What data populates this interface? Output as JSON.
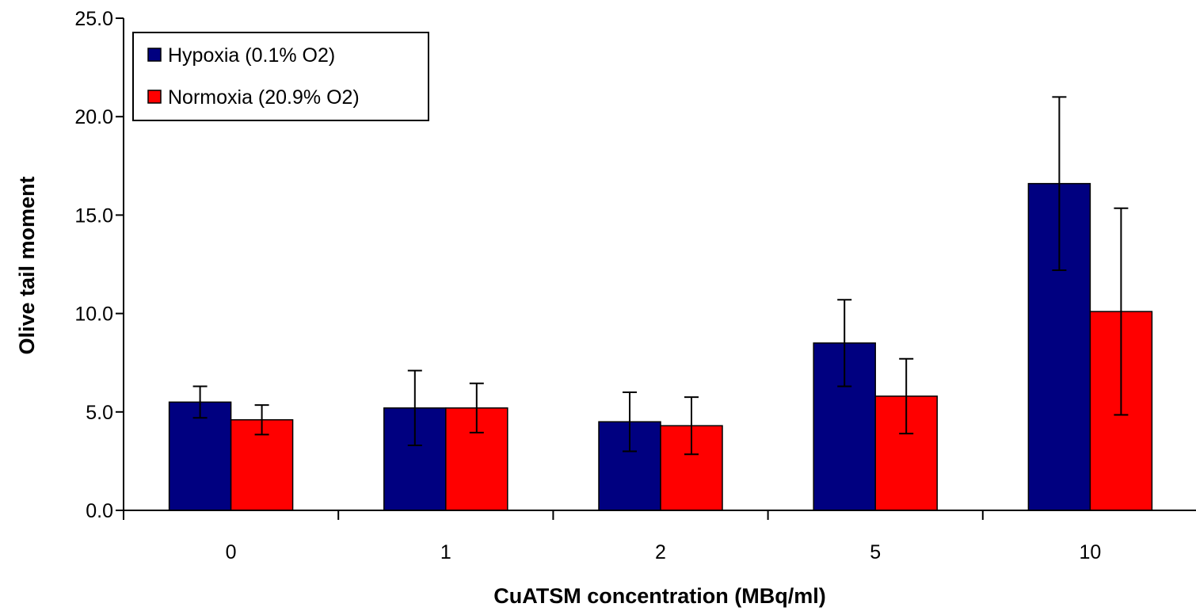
{
  "chart_data": {
    "type": "bar",
    "xlabel": "CuATSM concentration (MBq/ml)",
    "ylabel": "Olive tail moment",
    "ylim": [
      0,
      25
    ],
    "yticks": [
      "0.0",
      "5.0",
      "10.0",
      "15.0",
      "20.0",
      "25.0"
    ],
    "categories": [
      "0",
      "1",
      "2",
      "5",
      "10"
    ],
    "grid": false,
    "legend_position": "top-left",
    "series": [
      {
        "name": "Hypoxia (0.1% O2)",
        "color": "#000080",
        "values": [
          5.5,
          5.2,
          4.5,
          8.5,
          16.6
        ],
        "error": [
          0.8,
          1.9,
          1.5,
          2.2,
          4.4
        ]
      },
      {
        "name": "Normoxia (20.9% O2)",
        "color": "#ff0000",
        "values": [
          4.6,
          5.2,
          4.3,
          5.8,
          10.1
        ],
        "error": [
          0.75,
          1.25,
          1.45,
          1.9,
          5.25
        ]
      }
    ]
  }
}
